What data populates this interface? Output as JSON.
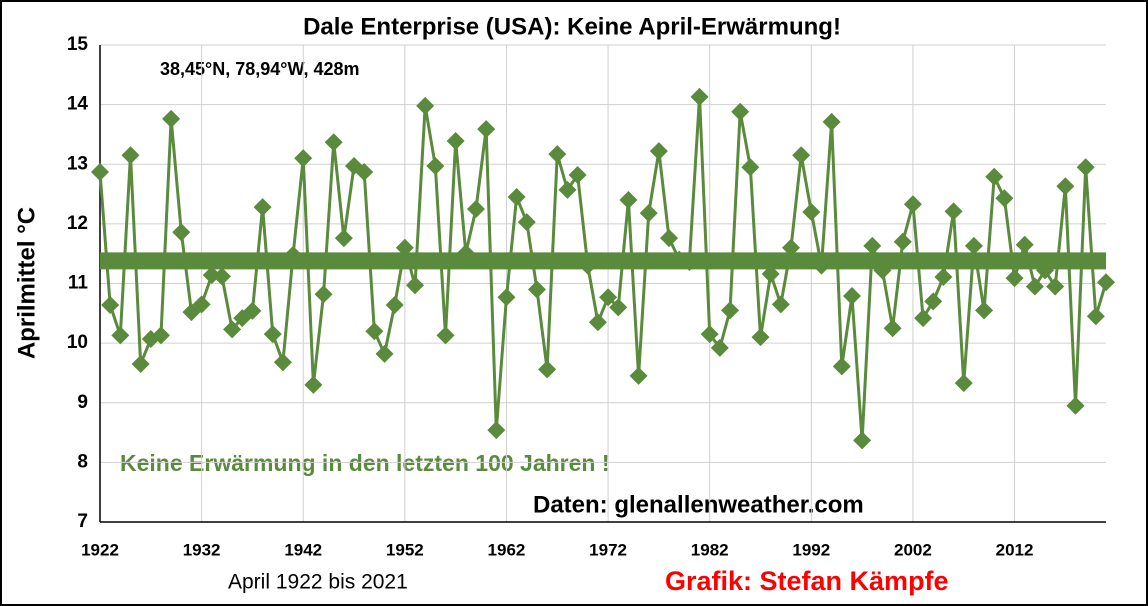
{
  "chart_data": {
    "type": "line",
    "title": "Dale Enterprise (USA): Keine April-Erwärmung!",
    "subtitle": "38,45°N, 78,94°W, 428m",
    "ylabel": "Aprilmittel °C",
    "xlabel": "April 1922 bis 2021",
    "annotations": [
      "Keine Erwärmung in den letzten 100 Jahren !",
      "Daten: glenallenweather.com",
      "Grafik: Stefan Kämpfe"
    ],
    "x": [
      1922,
      1923,
      1924,
      1925,
      1926,
      1927,
      1928,
      1929,
      1930,
      1931,
      1932,
      1933,
      1934,
      1935,
      1936,
      1937,
      1938,
      1939,
      1940,
      1941,
      1942,
      1943,
      1944,
      1945,
      1946,
      1947,
      1948,
      1949,
      1950,
      1951,
      1952,
      1953,
      1954,
      1955,
      1956,
      1957,
      1958,
      1959,
      1960,
      1961,
      1962,
      1963,
      1964,
      1965,
      1966,
      1967,
      1968,
      1969,
      1970,
      1971,
      1972,
      1973,
      1974,
      1975,
      1976,
      1977,
      1978,
      1979,
      1980,
      1981,
      1982,
      1983,
      1984,
      1985,
      1986,
      1987,
      1988,
      1989,
      1990,
      1991,
      1992,
      1993,
      1994,
      1995,
      1996,
      1997,
      1998,
      1999,
      2000,
      2001,
      2002,
      2003,
      2004,
      2005,
      2006,
      2007,
      2008,
      2009,
      2010,
      2011,
      2012,
      2013,
      2014,
      2015,
      2016,
      2017,
      2018,
      2019,
      2020,
      2021
    ],
    "series": [
      {
        "color": "#5a8a3c",
        "values": [
          12.87,
          10.64,
          10.13,
          13.15,
          9.65,
          10.07,
          10.13,
          13.76,
          11.86,
          10.52,
          10.65,
          11.14,
          11.12,
          10.23,
          10.42,
          10.54,
          12.28,
          10.15,
          9.68,
          11.48,
          13.1,
          9.3,
          10.82,
          13.37,
          11.76,
          12.97,
          12.87,
          10.2,
          9.82,
          10.64,
          11.6,
          10.97,
          13.98,
          12.97,
          10.13,
          13.39,
          11.51,
          12.25,
          13.59,
          8.54,
          10.77,
          12.45,
          12.03,
          10.9,
          9.56,
          13.17,
          12.57,
          12.82,
          11.3,
          10.35,
          10.77,
          10.6,
          12.4,
          9.45,
          12.18,
          13.22,
          11.76,
          11.4,
          11.36,
          14.13,
          10.15,
          9.92,
          10.55,
          13.88,
          12.95,
          10.1,
          11.16,
          10.65,
          11.6,
          13.15,
          12.2,
          11.3,
          13.71,
          9.61,
          10.79,
          8.37,
          11.63,
          11.22,
          10.25,
          11.7,
          12.33,
          10.42,
          10.7,
          11.11,
          12.21,
          9.33,
          11.63,
          10.55,
          12.79,
          12.43,
          11.09,
          11.65,
          10.95,
          11.22,
          10.95,
          12.63,
          8.95,
          12.95,
          10.45,
          11.02
        ]
      }
    ],
    "trend": {
      "color": "#5a8a3c",
      "values": [
        11.38,
        11.38
      ]
    },
    "xlim": [
      1922,
      2021
    ],
    "xticks": [
      1922,
      1932,
      1942,
      1952,
      1962,
      1972,
      1982,
      1992,
      2002,
      2012
    ],
    "ylim": [
      7,
      15
    ],
    "yticks": [
      7,
      8,
      9,
      10,
      11,
      12,
      13,
      14,
      15
    ],
    "grid": true
  }
}
